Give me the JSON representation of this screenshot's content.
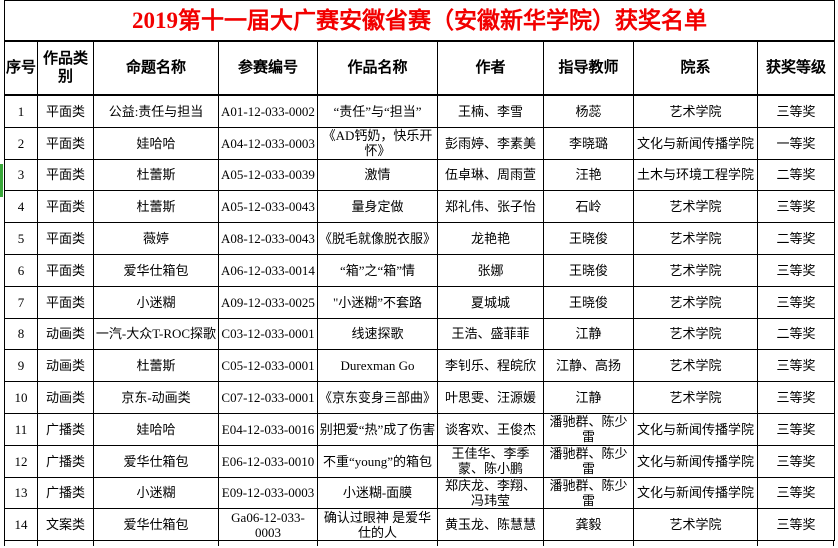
{
  "title": "2019第十一届大广赛安徽省赛（安徽新华学院）获奖名单",
  "colors": {
    "title_text": "#f20000",
    "border": "#000000",
    "row_marker_green": "#3aa83a"
  },
  "table": {
    "columns": [
      "序号",
      "作品类别",
      "命题名称",
      "参赛编号",
      "作品名称",
      "作者",
      "指导教师",
      "院系",
      "获奖等级"
    ],
    "column_keys": [
      "index",
      "category",
      "topic",
      "entry-code",
      "work-title",
      "authors",
      "advisors",
      "department",
      "award"
    ],
    "rows": [
      [
        "1",
        "平面类",
        "公益:责任与担当",
        "A01-12-033-0002",
        "“责任”与“担当”",
        "王楠、李雪",
        "杨蕊",
        "艺术学院",
        "三等奖"
      ],
      [
        "2",
        "平面类",
        "娃哈哈",
        "A04-12-033-0003",
        "《AD钙奶，快乐开怀》",
        "彭雨婷、李素美",
        "李晓璐",
        "文化与新闻传播学院",
        "一等奖"
      ],
      [
        "3",
        "平面类",
        "杜蕾斯",
        "A05-12-033-0039",
        "激情",
        "伍卓琳、周雨萱",
        "汪艳",
        "土木与环境工程学院",
        "二等奖"
      ],
      [
        "4",
        "平面类",
        "杜蕾斯",
        "A05-12-033-0043",
        "量身定做",
        "郑礼伟、张子怡",
        "石岭",
        "艺术学院",
        "三等奖"
      ],
      [
        "5",
        "平面类",
        "薇婷",
        "A08-12-033-0043",
        "《脱毛就像脱衣服》",
        "龙艳艳",
        "王晓俊",
        "艺术学院",
        "二等奖"
      ],
      [
        "6",
        "平面类",
        "爱华仕箱包",
        "A06-12-033-0014",
        "“箱”之“箱”情",
        "张娜",
        "王晓俊",
        "艺术学院",
        "三等奖"
      ],
      [
        "7",
        "平面类",
        "小迷糊",
        "A09-12-033-0025",
        "\"小迷糊”不套路",
        "夏城城",
        "王晓俊",
        "艺术学院",
        "三等奖"
      ],
      [
        "8",
        "动画类",
        "一汽-大众T-ROC探歌",
        "C03-12-033-0001",
        "线速探歌",
        "王浩、盛菲菲",
        "江静",
        "艺术学院",
        "二等奖"
      ],
      [
        "9",
        "动画类",
        "杜蕾斯",
        "C05-12-033-0001",
        "Durexman Go",
        "李钊乐、程皖欣",
        "江静、高扬",
        "艺术学院",
        "三等奖"
      ],
      [
        "10",
        "动画类",
        "京东-动画类",
        "C07-12-033-0001",
        "《京东变身三部曲》",
        "叶思雯、汪源媛",
        "江静",
        "艺术学院",
        "三等奖"
      ],
      [
        "11",
        "广播类",
        "娃哈哈",
        "E04-12-033-0016",
        "别把爱“热”成了伤害",
        "谈客欢、王俊杰",
        "潘驰群、陈少雷",
        "文化与新闻传播学院",
        "三等奖"
      ],
      [
        "12",
        "广播类",
        "爱华仕箱包",
        "E06-12-033-0010",
        "不重“young”的箱包",
        "王佳华、李季蒙、陈小鹏",
        "潘驰群、陈少雷",
        "文化与新闻传播学院",
        "三等奖"
      ],
      [
        "13",
        "广播类",
        "小迷糊",
        "E09-12-033-0003",
        "小迷糊-面膜",
        "郑庆龙、李翔、冯玮莹",
        "潘驰群、陈少雷",
        "文化与新闻传播学院",
        "三等奖"
      ],
      [
        "14",
        "文案类",
        "爱华仕箱包",
        "Ga06-12-033-0003",
        "确认过眼神 是爱华仕的人",
        "黄玉龙、陈慧慧",
        "龚毅",
        "艺术学院",
        "三等奖"
      ]
    ]
  }
}
